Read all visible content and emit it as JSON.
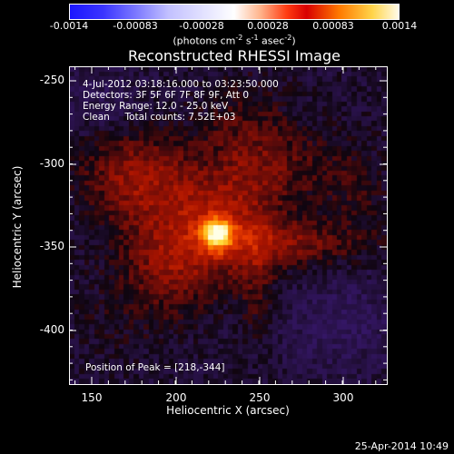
{
  "colorbar": {
    "ticks": [
      "-0.0014",
      "-0.00083",
      "-0.00028",
      "0.00028",
      "0.00083",
      "0.0014"
    ],
    "units_prefix": "(photons cm",
    "units_sup1": "-2",
    "units_mid": " s",
    "units_sup2": "-1",
    "units_mid2": " asec",
    "units_sup3": "-2",
    "units_suffix": ")"
  },
  "title": "Reconstructed RHESSI Image",
  "annotations": {
    "time": "4-Jul-2012 03:18:16.000 to 03:23:50.000",
    "detectors": "Detectors: 3F 5F 6F 7F 8F 9F, Att 0",
    "energy": "Energy Range: 12.0 - 25.0 keV",
    "clean": "Clean     Total counts: 7.52E+03",
    "peak": "Position of Peak = [218,-344]"
  },
  "axes": {
    "xlabel": "Heliocentric X (arcsec)",
    "ylabel": "Heliocentric Y (arcsec)",
    "xticks": [
      "150",
      "200",
      "250",
      "300"
    ],
    "yticks": [
      "-250",
      "-300",
      "-350",
      "-400"
    ]
  },
  "footer": "25-Apr-2014 10:49",
  "colors": {
    "background": "#000000",
    "text": "#ffffff"
  }
}
